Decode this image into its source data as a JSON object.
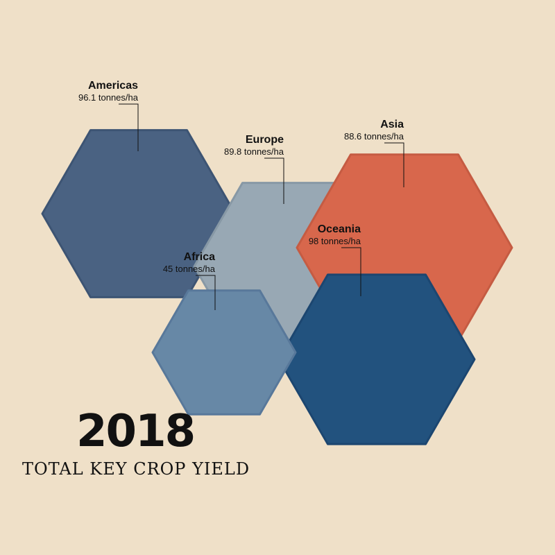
{
  "chart_data": {
    "type": "bubble-hexagon",
    "year": "2018",
    "title": "TOTAL KEY CROP YIELD",
    "unit": "tonnes/ha",
    "series": [
      {
        "name": "Americas",
        "value": 96.1,
        "label": "96.1 tonnes/ha",
        "color": "#4a6282"
      },
      {
        "name": "Europe",
        "value": 89.8,
        "label": "89.8 tonnes/ha",
        "color": "#98a8b4"
      },
      {
        "name": "Asia",
        "value": 88.6,
        "label": "88.6 tonnes/ha",
        "color": "#d8674c"
      },
      {
        "name": "Oceania",
        "value": 98,
        "label": "98 tonnes/ha",
        "color": "#22527e"
      },
      {
        "name": "Africa",
        "value": 45,
        "label": "45 tonnes/ha",
        "color": "#6788a6"
      }
    ]
  }
}
